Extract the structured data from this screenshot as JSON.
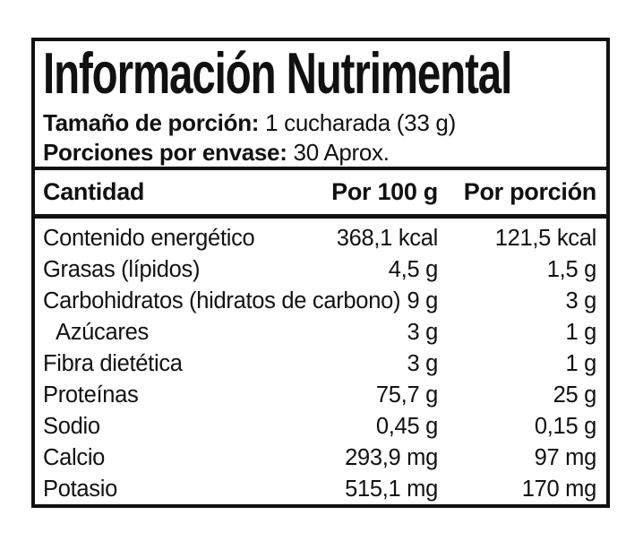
{
  "header": {
    "title": "Información Nutrimental",
    "serving_size_label": "Tamaño de porción:",
    "serving_size_value": "1 cucharada (33 g)",
    "servings_per_container_label": "Porciones por envase:",
    "servings_per_container_value": "30 Aprox."
  },
  "table": {
    "columns": [
      "Cantidad",
      "Por 100 g",
      "Por porción"
    ],
    "rows": [
      {
        "name": "Contenido energético",
        "per_100g": "368,1 kcal",
        "per_serving": "121,5 kcal",
        "indent": false
      },
      {
        "name": "Grasas (lípidos)",
        "per_100g": "4,5 g",
        "per_serving": "1,5 g",
        "indent": false
      },
      {
        "name": "Carbohidratos (hidratos de carbono)",
        "per_100g": "9 g",
        "per_serving": "3 g",
        "indent": false
      },
      {
        "name": "Azúcares",
        "per_100g": "3 g",
        "per_serving": "1 g",
        "indent": true
      },
      {
        "name": "Fibra dietética",
        "per_100g": "3 g",
        "per_serving": "1 g",
        "indent": false
      },
      {
        "name": "Proteínas",
        "per_100g": "75,7 g",
        "per_serving": "25 g",
        "indent": false
      },
      {
        "name": "Sodio",
        "per_100g": "0,45 g",
        "per_serving": "0,15 g",
        "indent": false
      },
      {
        "name": "Calcio",
        "per_100g": "293,9 mg",
        "per_serving": "97 mg",
        "indent": false
      },
      {
        "name": "Potasio",
        "per_100g": "515,1 mg",
        "per_serving": "170 mg",
        "indent": false
      }
    ]
  },
  "colors": {
    "text": "#111111",
    "border": "#111111",
    "background": "#ffffff"
  }
}
